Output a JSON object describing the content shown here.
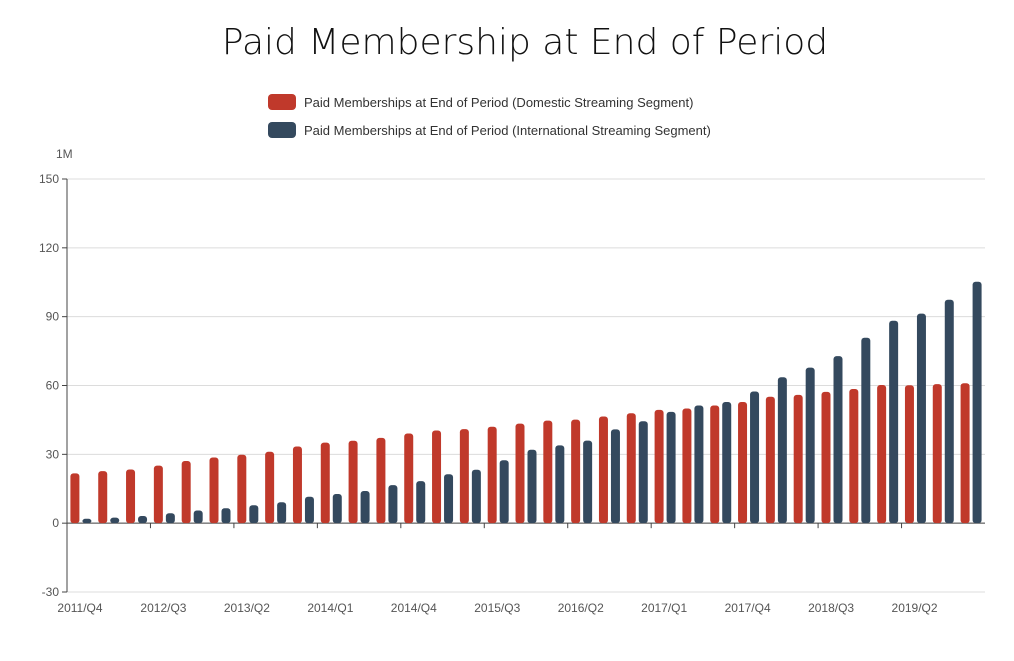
{
  "chart_data": {
    "type": "bar",
    "title": "Paid Membership at End of Period",
    "unit_label": "1M",
    "ylim": [
      -30,
      150
    ],
    "y_ticks": [
      -30,
      0,
      30,
      60,
      90,
      120,
      150
    ],
    "grid": true,
    "legend_position": "top-center",
    "x_tick_labels": [
      "2011/Q4",
      "2012/Q3",
      "2013/Q2",
      "2014/Q1",
      "2014/Q4",
      "2015/Q3",
      "2016/Q2",
      "2017/Q1",
      "2017/Q4",
      "2018/Q3",
      "2019/Q2"
    ],
    "categories": [
      "2011/Q4",
      "2012/Q1",
      "2012/Q2",
      "2012/Q3",
      "2012/Q4",
      "2013/Q1",
      "2013/Q2",
      "2013/Q3",
      "2013/Q4",
      "2014/Q1",
      "2014/Q2",
      "2014/Q3",
      "2014/Q4",
      "2015/Q1",
      "2015/Q2",
      "2015/Q3",
      "2015/Q4",
      "2016/Q1",
      "2016/Q2",
      "2016/Q3",
      "2016/Q4",
      "2017/Q1",
      "2017/Q2",
      "2017/Q3",
      "2017/Q4",
      "2018/Q1",
      "2018/Q2",
      "2018/Q3",
      "2018/Q4",
      "2019/Q1",
      "2019/Q2",
      "2019/Q3",
      "2019/Q4"
    ],
    "series": [
      {
        "name": "Paid Memberships at End of Period  (Domestic Streaming Segment)",
        "color": "#c0392b",
        "values": [
          21.7,
          22.7,
          23.4,
          25.1,
          27.1,
          28.6,
          29.8,
          31.1,
          33.4,
          35.1,
          35.9,
          37.2,
          39.1,
          40.4,
          41.0,
          42.0,
          43.4,
          44.7,
          45.1,
          46.5,
          47.9,
          49.4,
          50.0,
          51.3,
          52.8,
          55.1,
          55.9,
          57.2,
          58.5,
          60.2,
          60.1,
          60.6,
          61.0
        ]
      },
      {
        "name": "Paid Memberships at End of Period  (International Streaming Segment)",
        "color": "#34495e",
        "values": [
          1.9,
          2.4,
          3.1,
          4.3,
          5.5,
          6.5,
          7.8,
          9.1,
          11.5,
          12.7,
          14.0,
          16.6,
          18.3,
          21.3,
          23.3,
          27.4,
          32.0,
          33.9,
          36.0,
          40.9,
          44.4,
          48.5,
          51.3,
          52.8,
          57.4,
          63.6,
          67.8,
          72.8,
          80.8,
          88.2,
          91.3,
          97.4,
          105.2
        ]
      }
    ]
  }
}
